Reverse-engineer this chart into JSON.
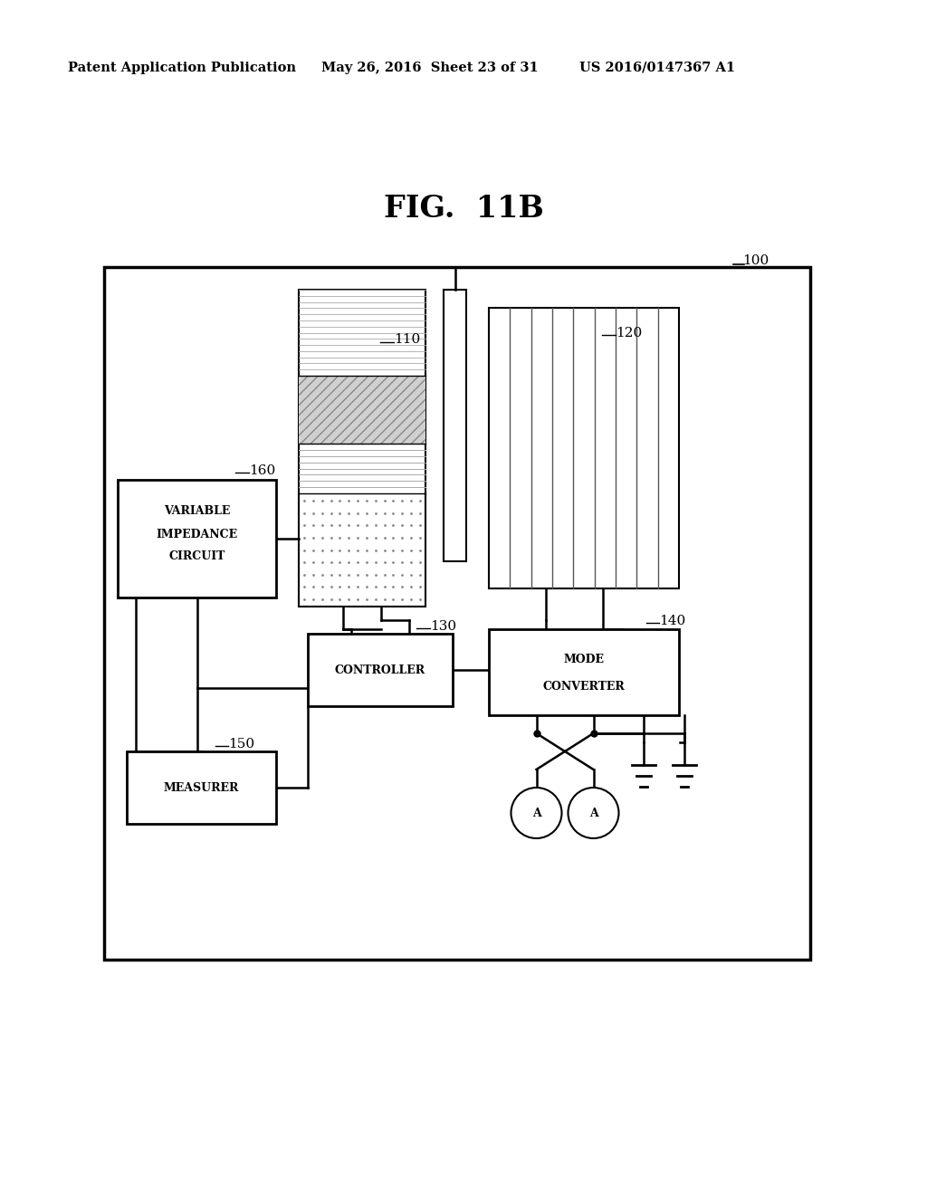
{
  "bg_color": "#ffffff",
  "header_text1": "Patent Application Publication",
  "header_text2": "May 26, 2016  Sheet 23 of 31",
  "header_text3": "US 2016/0147367 A1",
  "fig_title": "FIG.  11B"
}
